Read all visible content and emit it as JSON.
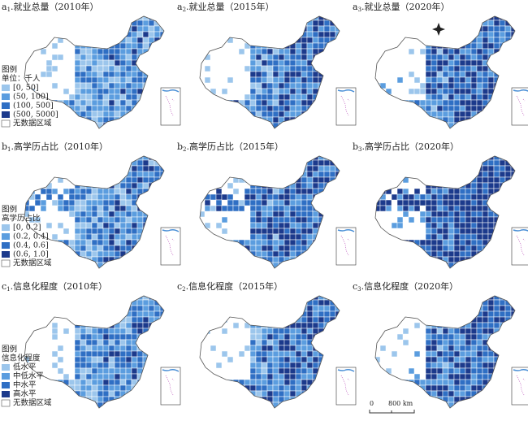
{
  "panels": [
    {
      "label": "a",
      "sub": "1",
      "title": ".就业总量（2010年）"
    },
    {
      "label": "a",
      "sub": "2",
      "title": ".就业总量（2015年）"
    },
    {
      "label": "a",
      "sub": "3",
      "title": ".就业总量（2020年）"
    },
    {
      "label": "b",
      "sub": "1",
      "title": ".高学历占比（2010年）"
    },
    {
      "label": "b",
      "sub": "2",
      "title": ".高学历占比（2015年）"
    },
    {
      "label": "b",
      "sub": "3",
      "title": ".高学历占比（2020年）"
    },
    {
      "label": "c",
      "sub": "1",
      "title": ".信息化程度（2010年）"
    },
    {
      "label": "c",
      "sub": "2",
      "title": ".信息化程度（2015年）"
    },
    {
      "label": "c",
      "sub": "3",
      "title": ".信息化程度（2020年）"
    }
  ],
  "legends": [
    {
      "heading": "图例",
      "unit": "单位：千人",
      "nodata": "无数据区域",
      "items": [
        {
          "label": "[0, 50]",
          "color": "#9cc6ec"
        },
        {
          "label": "(50, 100]",
          "color": "#5b9ddf"
        },
        {
          "label": "(100, 500]",
          "color": "#2f6fc4"
        },
        {
          "label": "(500, 5000]",
          "color": "#1c3a8c"
        }
      ]
    },
    {
      "heading": "图例",
      "unit": "高学历占比",
      "nodata": "无数据区域",
      "items": [
        {
          "label": "[0, 0.2]",
          "color": "#9cc6ec"
        },
        {
          "label": "(0.2, 0.4]",
          "color": "#5b9ddf"
        },
        {
          "label": "(0.4, 0.6]",
          "color": "#2f6fc4"
        },
        {
          "label": "(0.6, 1.0]",
          "color": "#1c3a8c"
        }
      ]
    },
    {
      "heading": "图例",
      "unit": "信息化程度",
      "nodata": "无数据区域",
      "items": [
        {
          "label": "低水平",
          "color": "#9cc6ec"
        },
        {
          "label": "中低水平",
          "color": "#5b9ddf"
        },
        {
          "label": "中水平",
          "color": "#2f6fc4"
        },
        {
          "label": "高水平",
          "color": "#1c3a8c"
        }
      ]
    }
  ],
  "scale": {
    "start": "0",
    "end": "800 km"
  }
}
